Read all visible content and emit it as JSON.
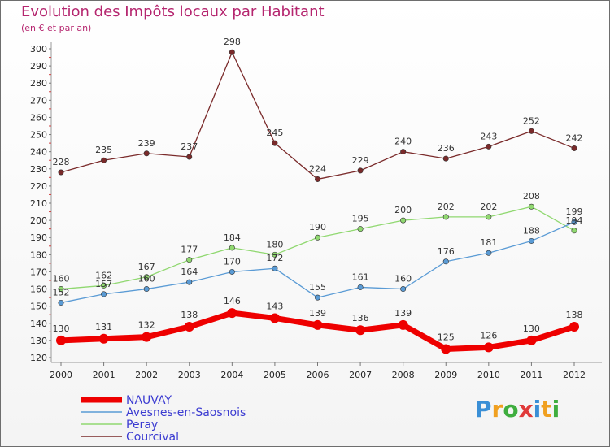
{
  "title": "Evolution des Impôts locaux par Habitant",
  "subtitle": "(en € et par an)",
  "logo": {
    "letters": [
      "P",
      "r",
      "o",
      "x",
      "i",
      "t",
      "i"
    ],
    "colors": [
      "#3a8fd6",
      "#f0a020",
      "#3fae3f",
      "#e03a3a",
      "#3a8fd6",
      "#f0a020",
      "#3fae3f"
    ]
  },
  "chart_data": {
    "type": "line",
    "title": "Evolution des Impôts locaux par Habitant",
    "subtitle": "(en € et par an)",
    "x": [
      "2000",
      "2001",
      "2002",
      "2003",
      "2004",
      "2005",
      "2006",
      "2007",
      "2008",
      "2009",
      "2010",
      "2011",
      "2012"
    ],
    "ylim": [
      120,
      300
    ],
    "yticks": [
      120,
      130,
      140,
      150,
      160,
      170,
      180,
      190,
      200,
      210,
      220,
      230,
      240,
      250,
      260,
      270,
      280,
      290,
      300
    ],
    "grid": false,
    "legend_position": "bottom-left",
    "series": [
      {
        "name": "NAUVAY",
        "color": "#ee0000",
        "values": [
          130,
          131,
          132,
          138,
          146,
          143,
          139,
          136,
          139,
          125,
          126,
          130,
          138
        ]
      },
      {
        "name": "Avesnes-en-Saosnois",
        "color": "#5a9bd5",
        "values": [
          152,
          157,
          160,
          164,
          170,
          172,
          155,
          161,
          160,
          176,
          181,
          188,
          199
        ]
      },
      {
        "name": "Peray",
        "color": "#90d870",
        "values": [
          160,
          162,
          167,
          177,
          184,
          180,
          190,
          195,
          200,
          202,
          202,
          208,
          194
        ]
      },
      {
        "name": "Courcival",
        "color": "#7a2a2a",
        "values": [
          228,
          235,
          239,
          237,
          298,
          245,
          224,
          229,
          240,
          236,
          243,
          252,
          242
        ]
      }
    ]
  }
}
